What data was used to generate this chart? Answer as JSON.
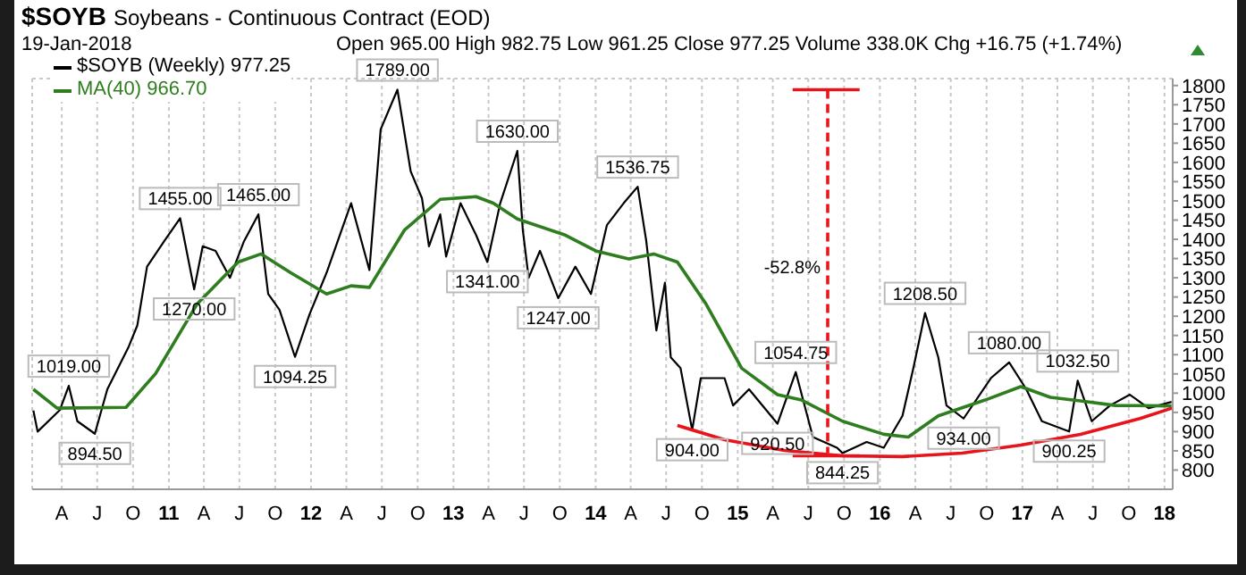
{
  "chart_data": {
    "type": "line",
    "title": "$SOYB",
    "subtitle": "Soybeans - Continuous Contract (EOD)",
    "annotations": [
      "19-Jan-2018",
      "Open 965.00 High 982.75 Low 961.25 Close 977.25 Volume 338.0K Chg +16.75 (+1.74%)",
      {
        "text": "1019.00",
        "x": "2010-04-19",
        "y": 1019
      },
      {
        "text": "894.50",
        "x": "2010-06-25",
        "y": 894.5
      },
      {
        "text": "1455.00",
        "x": "2011-01-30",
        "y": 1455
      },
      {
        "text": "1270.00",
        "x": "2011-03-07",
        "y": 1270
      },
      {
        "text": "1465.00",
        "x": "2011-08-19",
        "y": 1465
      },
      {
        "text": "1094.25",
        "x": "2011-11-21",
        "y": 1094.25
      },
      {
        "text": "1789.00",
        "x": "2012-08-10",
        "y": 1789
      },
      {
        "text": "1341.00",
        "x": "2013-03-29",
        "y": 1341
      },
      {
        "text": "1630.00",
        "x": "2013-06-14",
        "y": 1630
      },
      {
        "text": "1247.00",
        "x": "2013-09-27",
        "y": 1247
      },
      {
        "text": "1536.75",
        "x": "2014-04-19",
        "y": 1536.75
      },
      {
        "text": "904.00",
        "x": "2014-09-06",
        "y": 904
      },
      {
        "text": "920.50",
        "x": "2015-04-13",
        "y": 920.5
      },
      {
        "text": "1054.75",
        "x": "2015-05-30",
        "y": 1054.75
      },
      {
        "text": "844.25",
        "x": "2015-09-27",
        "y": 844.25
      },
      {
        "text": "1208.50",
        "x": "2016-04-26",
        "y": 1208.5
      },
      {
        "text": "934.00",
        "x": "2016-08-03",
        "y": 934
      },
      {
        "text": "1080.00",
        "x": "2016-11-28",
        "y": 1080
      },
      {
        "text": "900.25",
        "x": "2017-05-01",
        "y": 900.25
      },
      {
        "text": "1032.50",
        "x": "2017-05-23",
        "y": 1032.5
      },
      {
        "text": "-52.8%",
        "x": "2015-08-20",
        "y": 1330
      }
    ],
    "series": [
      {
        "name": "$SOYB (Weekly) 977.25",
        "color": "#000000",
        "x": [
          "2010-01-18",
          "2010-01-29",
          "2010-03-27",
          "2010-04-19",
          "2010-05-11",
          "2010-06-25",
          "2010-07-27",
          "2010-09-20",
          "2010-10-12",
          "2010-11-06",
          "2010-12-20",
          "2011-01-30",
          "2011-03-07",
          "2011-03-29",
          "2011-05-01",
          "2011-06-07",
          "2011-07-13",
          "2011-08-19",
          "2011-09-13",
          "2011-10-12",
          "2011-11-21",
          "2011-12-28",
          "2012-02-10",
          "2012-04-13",
          "2012-05-30",
          "2012-06-28",
          "2012-08-10",
          "2012-09-13",
          "2012-10-12",
          "2012-10-30",
          "2012-11-28",
          "2012-12-13",
          "2013-01-19",
          "2013-02-28",
          "2013-03-29",
          "2013-05-01",
          "2013-06-14",
          "2013-06-28",
          "2013-07-13",
          "2013-08-11",
          "2013-09-27",
          "2013-11-10",
          "2013-12-20",
          "2014-01-30",
          "2014-03-14",
          "2014-04-19",
          "2014-05-11",
          "2014-06-06",
          "2014-06-28",
          "2014-07-13",
          "2014-08-07",
          "2014-09-06",
          "2014-09-28",
          "2014-11-28",
          "2014-12-20",
          "2015-01-30",
          "2015-04-13",
          "2015-05-30",
          "2015-07-13",
          "2015-09-13",
          "2015-09-27",
          "2015-11-28",
          "2016-01-11",
          "2016-02-28",
          "2016-03-27",
          "2016-04-26",
          "2016-05-30",
          "2016-06-20",
          "2016-08-03",
          "2016-10-12",
          "2016-11-28",
          "2017-01-11",
          "2017-02-20",
          "2017-05-01",
          "2017-05-23",
          "2017-06-28",
          "2017-08-14",
          "2017-10-04",
          "2017-11-21",
          "2018-01-19"
        ],
        "values": [
          955,
          900,
          956,
          1019,
          927,
          894.5,
          1010,
          1121,
          1176,
          1329,
          1395,
          1455,
          1270,
          1382,
          1370,
          1300,
          1395,
          1465,
          1258,
          1217,
          1094.25,
          1204,
          1313,
          1494,
          1320,
          1686,
          1789,
          1577,
          1507,
          1382,
          1465,
          1355,
          1494,
          1411,
          1341,
          1494,
          1630,
          1424,
          1300,
          1370,
          1247,
          1329,
          1258,
          1437,
          1494,
          1536.75,
          1396,
          1163,
          1287,
          1093,
          1065,
          904,
          1039,
          1039,
          968,
          1010,
          920.5,
          1054.75,
          886,
          858,
          844.25,
          873,
          858,
          941,
          1065,
          1208.5,
          1093,
          968,
          934,
          1039,
          1080,
          1010,
          927,
          900.25,
          1032.5,
          927,
          968,
          996,
          961,
          977.25
        ]
      },
      {
        "name": "MA(40) 966.70",
        "color": "#2e7d1e",
        "x": [
          "2010-01-18",
          "2010-03-20",
          "2010-09-13",
          "2010-11-28",
          "2011-03-14",
          "2011-06-28",
          "2011-08-26",
          "2011-11-10",
          "2012-02-10",
          "2012-04-13",
          "2012-05-30",
          "2012-08-28",
          "2012-11-28",
          "2013-02-28",
          "2013-04-13",
          "2013-06-14",
          "2013-10-15",
          "2014-01-01",
          "2014-03-27",
          "2014-05-30",
          "2014-07-30",
          "2014-10-12",
          "2015-01-11",
          "2015-04-13",
          "2015-06-14",
          "2015-09-27",
          "2016-01-11",
          "2016-03-14",
          "2016-05-30",
          "2016-09-27",
          "2016-12-28",
          "2017-03-14",
          "2017-05-30",
          "2017-08-28",
          "2018-01-19"
        ],
        "values": [
          1010,
          961,
          963,
          1051,
          1231,
          1341,
          1362,
          1313,
          1258,
          1279,
          1275,
          1424,
          1504,
          1511,
          1494,
          1453,
          1411,
          1370,
          1349,
          1362,
          1341,
          1231,
          1065,
          996,
          982,
          927,
          893,
          886,
          941,
          982,
          1017,
          989,
          980,
          968,
          966.7
        ]
      },
      {
        "color": "#e8141b",
        "x": [
          "2014-07-30",
          "2014-11-28",
          "2015-05-01",
          "2015-09-27",
          "2016-02-28",
          "2016-07-30",
          "2016-12-28",
          "2017-05-30",
          "2017-10-30",
          "2018-01-20"
        ],
        "values": [
          916,
          879,
          851,
          837,
          835,
          844,
          865,
          893,
          934,
          961
        ]
      },
      {
        "color": "#e8141b",
        "line_style": "dashed",
        "x": [
          "2015-08-20",
          "2015-08-20"
        ],
        "values": [
          1789,
          844
        ]
      },
      {
        "color": "#e8141b",
        "x": [
          "2015-05-22",
          "2015-11-10"
        ],
        "values": [
          1789,
          1789
        ]
      },
      {
        "color": "#e8141b",
        "x": [
          "2015-05-22",
          "2015-11-10"
        ],
        "values": [
          837,
          837
        ]
      }
    ],
    "xlim": [
      "2010-01-15",
      "2018-01-22"
    ],
    "xticks": [
      {
        "value": "2010-04-01",
        "label": "A"
      },
      {
        "value": "2010-07-01",
        "label": "J"
      },
      {
        "value": "2010-10-01",
        "label": "O"
      },
      {
        "value": "2011-01-01",
        "label": "11"
      },
      {
        "value": "2011-04-01",
        "label": "A"
      },
      {
        "value": "2011-07-01",
        "label": "J"
      },
      {
        "value": "2011-10-01",
        "label": "O"
      },
      {
        "value": "2012-01-01",
        "label": "12"
      },
      {
        "value": "2012-04-01",
        "label": "A"
      },
      {
        "value": "2012-07-01",
        "label": "J"
      },
      {
        "value": "2012-10-01",
        "label": "O"
      },
      {
        "value": "2013-01-01",
        "label": "13"
      },
      {
        "value": "2013-04-01",
        "label": "A"
      },
      {
        "value": "2013-07-01",
        "label": "J"
      },
      {
        "value": "2013-10-01",
        "label": "O"
      },
      {
        "value": "2014-01-01",
        "label": "14"
      },
      {
        "value": "2014-04-01",
        "label": "A"
      },
      {
        "value": "2014-07-01",
        "label": "J"
      },
      {
        "value": "2014-10-01",
        "label": "O"
      },
      {
        "value": "2015-01-01",
        "label": "15"
      },
      {
        "value": "2015-04-01",
        "label": "A"
      },
      {
        "value": "2015-07-01",
        "label": "J"
      },
      {
        "value": "2015-10-01",
        "label": "O"
      },
      {
        "value": "2016-01-01",
        "label": "16"
      },
      {
        "value": "2016-04-01",
        "label": "A"
      },
      {
        "value": "2016-07-01",
        "label": "J"
      },
      {
        "value": "2016-10-01",
        "label": "O"
      },
      {
        "value": "2017-01-01",
        "label": "17"
      },
      {
        "value": "2017-04-01",
        "label": "A"
      },
      {
        "value": "2017-07-01",
        "label": "J"
      },
      {
        "value": "2017-10-01",
        "label": "O"
      },
      {
        "value": "2018-01-01",
        "label": "18"
      }
    ],
    "ylim": [
      750,
      1818
    ],
    "yticks": [
      800,
      850,
      900,
      950,
      1000,
      1050,
      1100,
      1150,
      1200,
      1250,
      1300,
      1350,
      1400,
      1450,
      1500,
      1550,
      1600,
      1650,
      1700,
      1750,
      1800
    ],
    "grid": true,
    "legend": "top left"
  }
}
